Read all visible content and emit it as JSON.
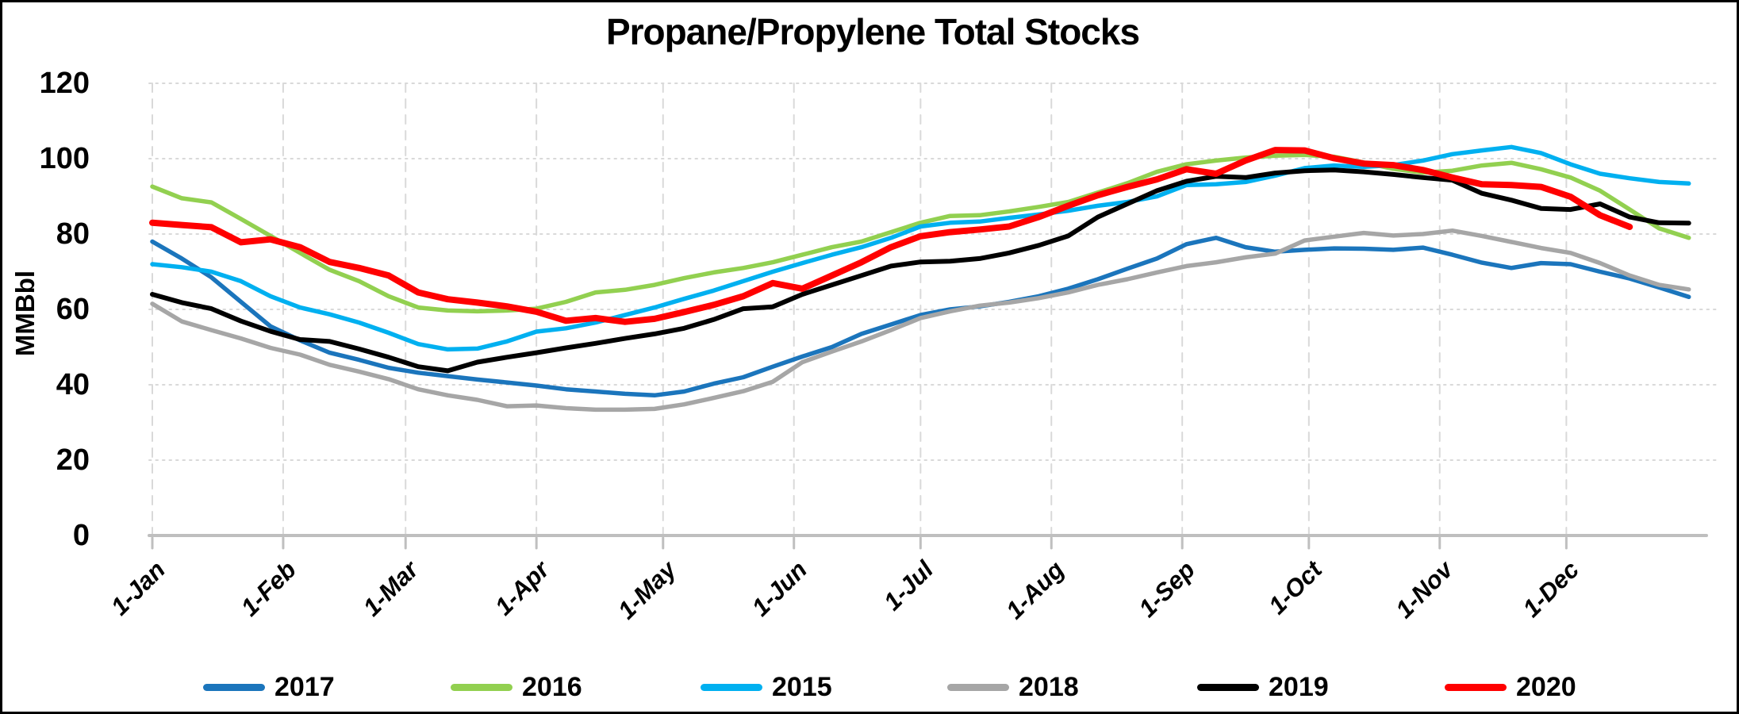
{
  "chart_data": {
    "type": "line",
    "title": "Propane/Propylene Total Stocks",
    "ylabel": "MMBbl",
    "ylim": [
      0,
      120
    ],
    "y_ticks": [
      0,
      20,
      40,
      60,
      80,
      100,
      120
    ],
    "x_tick_labels": [
      "1-Jan",
      "1-Feb",
      "1-Mar",
      "1-Apr",
      "1-May",
      "1-Jun",
      "1-Jul",
      "1-Aug",
      "1-Sep",
      "1-Oct",
      "1-Nov",
      "1-Dec"
    ],
    "month_start_day_of_year": [
      0,
      31,
      60,
      91,
      121,
      152,
      182,
      213,
      244,
      274,
      305,
      335
    ],
    "sampling_interval_days": 7,
    "grid": "horizontal dotted and vertical dashed light-gray gridlines",
    "legend_position": "bottom",
    "axis_color": "#BFBFBF",
    "gridline_color": "#D9D9D9",
    "series": [
      {
        "name": "2017",
        "color": "#1B75BC",
        "width": 5.5,
        "values": [
          78,
          73.5,
          68.5,
          62,
          55.5,
          51.8,
          48.5,
          46.6,
          44.5,
          43.2,
          42.3,
          41.4,
          40.6,
          39.8,
          38.8,
          38.2,
          37.6,
          37.2,
          38.2,
          40.3,
          42,
          44.8,
          47.5,
          50,
          53.5,
          56,
          58.5,
          60,
          60.8,
          62,
          63.5,
          65.5,
          68,
          70.8,
          73.5,
          77.3,
          79,
          76.5,
          75.3,
          75.8,
          76.2,
          76.1,
          75.8,
          76.4,
          74.5,
          72.4,
          71,
          72.3,
          72,
          70,
          68.2,
          65.8,
          63.3
        ]
      },
      {
        "name": "2016",
        "color": "#92D050",
        "width": 5.5,
        "values": [
          92.6,
          89.5,
          88.4,
          84,
          79.5,
          75,
          70.5,
          67.5,
          63.5,
          60.5,
          59.7,
          59.5,
          59.7,
          60.2,
          62,
          64.5,
          65.2,
          66.5,
          68.3,
          69.8,
          71,
          72.5,
          74.5,
          76.5,
          78,
          80.5,
          83,
          84.8,
          85,
          86,
          87.2,
          88.5,
          91,
          93.5,
          96.5,
          98.5,
          99.5,
          100.3,
          100.8,
          101,
          100.5,
          99,
          97.3,
          96.3,
          96.8,
          98.2,
          98.9,
          97.2,
          95,
          91.5,
          86.5,
          81.5,
          79
        ]
      },
      {
        "name": "2015",
        "color": "#00B0F0",
        "width": 5.5,
        "values": [
          72,
          71.2,
          70,
          67.5,
          63.5,
          60.5,
          58.7,
          56.5,
          53.8,
          50.8,
          49.4,
          49.6,
          51.5,
          54.1,
          55,
          56.5,
          58.5,
          60.5,
          62.8,
          65,
          67.5,
          70,
          72.3,
          74.5,
          76.5,
          79,
          82,
          83,
          83.3,
          84.3,
          85.2,
          86.2,
          87.5,
          88.5,
          90,
          93,
          93.2,
          93.8,
          95.5,
          97.5,
          98.2,
          97.8,
          98.3,
          99.5,
          101.2,
          102.2,
          103.1,
          101.5,
          98.5,
          96,
          94.8,
          93.8,
          93.4
        ]
      },
      {
        "name": "2018",
        "color": "#A6A6A6",
        "width": 5.5,
        "values": [
          61.5,
          56.8,
          54.5,
          52.3,
          49.8,
          48,
          45.3,
          43.5,
          41.5,
          38.8,
          37.2,
          36,
          34.3,
          34.5,
          33.8,
          33.4,
          33.4,
          33.6,
          34.8,
          36.5,
          38.3,
          40.8,
          46,
          48.8,
          51.5,
          54.5,
          57.7,
          59.5,
          61,
          61.8,
          63,
          64.5,
          66.5,
          68,
          69.8,
          71.5,
          72.5,
          73.8,
          74.8,
          78.3,
          79.3,
          80.3,
          79.6,
          80,
          80.9,
          79.5,
          77.9,
          76.3,
          75,
          72.3,
          69,
          66.5,
          65.3
        ]
      },
      {
        "name": "2019",
        "color": "#000000",
        "width": 6,
        "values": [
          64,
          61.8,
          60.2,
          56.9,
          54.2,
          52,
          51.5,
          49.5,
          47.3,
          44.8,
          43.7,
          46,
          47.3,
          48.5,
          49.8,
          51,
          52.3,
          53.5,
          55,
          57.3,
          60.2,
          60.7,
          64,
          66.5,
          69,
          71.5,
          72.6,
          72.8,
          73.5,
          75,
          77,
          79.5,
          84.5,
          88,
          91.5,
          94,
          95.3,
          95,
          96.2,
          96.8,
          97,
          96.5,
          95.8,
          95,
          94.3,
          90.8,
          89,
          86.8,
          86.5,
          88,
          84.5,
          83,
          82.9
        ]
      },
      {
        "name": "2020",
        "color": "#FF0000",
        "width": 8,
        "values": [
          83,
          82.4,
          81.8,
          77.8,
          78.6,
          76.5,
          72.6,
          71,
          69,
          64.5,
          62.7,
          61.8,
          60.8,
          59.4,
          57,
          57.7,
          56.7,
          57.5,
          59.3,
          61.2,
          63.5,
          67,
          65.5,
          69,
          72.5,
          76.5,
          79.4,
          80.5,
          81.2,
          82,
          84.5,
          87.5,
          90.3,
          92.5,
          94.5,
          97.2,
          96,
          99.5,
          102.3,
          102.2,
          100.1,
          98.7,
          98.3,
          97,
          95,
          93.2,
          93,
          92.5,
          89.9,
          85,
          81.9
        ]
      }
    ]
  }
}
